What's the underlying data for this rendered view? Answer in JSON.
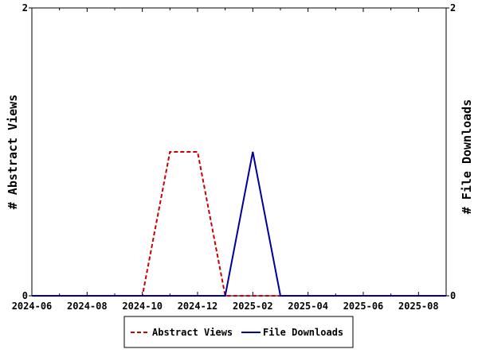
{
  "chart_data": {
    "type": "line",
    "x_labels": [
      "2024-06",
      "2024-08",
      "2024-10",
      "2024-12",
      "2025-02",
      "2025-04",
      "2025-06",
      "2025-08"
    ],
    "x_start": "2024-06",
    "x_end": "2025-09",
    "ylabel_left": "# Abstract Views",
    "ylabel_right": "# File Downloads",
    "y_left_ticks": [
      "0",
      "2"
    ],
    "y_right_ticks": [
      "0",
      "2"
    ],
    "ylim_left": [
      0,
      2
    ],
    "ylim_right": [
      0,
      2
    ],
    "grid": false,
    "legend_position": "bottom-center",
    "series": [
      {
        "name": "Abstract Views",
        "axis": "left",
        "color": "#cc0000",
        "dash": "dashed",
        "x": [
          "2024-06",
          "2024-07",
          "2024-08",
          "2024-09",
          "2024-10",
          "2024-11",
          "2024-12",
          "2025-01",
          "2025-02",
          "2025-03",
          "2025-04",
          "2025-05",
          "2025-06",
          "2025-07",
          "2025-08",
          "2025-09"
        ],
        "values": [
          0,
          0,
          0,
          0,
          0,
          1,
          1,
          0,
          0,
          0,
          0,
          0,
          0,
          0,
          0,
          0
        ]
      },
      {
        "name": "File Downloads",
        "axis": "right",
        "color": "#000099",
        "dash": "solid",
        "x": [
          "2024-06",
          "2024-07",
          "2024-08",
          "2024-09",
          "2024-10",
          "2024-11",
          "2024-12",
          "2025-01",
          "2025-02",
          "2025-03",
          "2025-04",
          "2025-05",
          "2025-06",
          "2025-07",
          "2025-08",
          "2025-09"
        ],
        "values": [
          0,
          0,
          0,
          0,
          0,
          0,
          0,
          0,
          1,
          0,
          0,
          0,
          0,
          0,
          0,
          0
        ]
      }
    ]
  }
}
